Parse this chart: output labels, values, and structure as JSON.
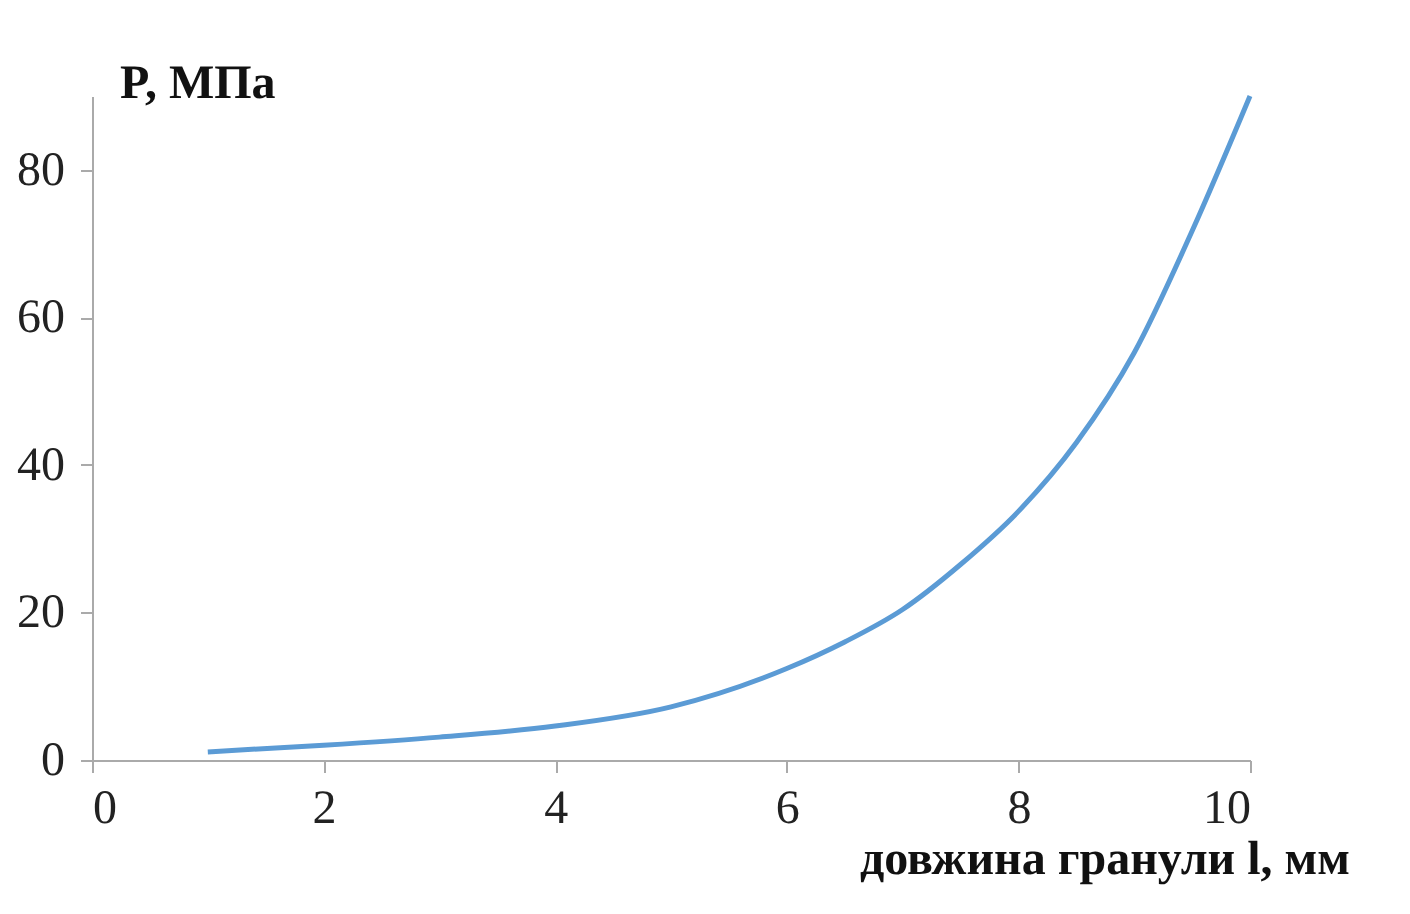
{
  "chart_data": {
    "type": "line",
    "xlabel": "довжина гранули l, мм",
    "ylabel": "P, МПа",
    "x": [
      1,
      2,
      3,
      4,
      5,
      6,
      6.5,
      7,
      7.5,
      8,
      8.5,
      9,
      9.5,
      10
    ],
    "series": [
      {
        "color": "#5b9bd5",
        "values": [
          1.1,
          2.0,
          3.1,
          4.6,
          7.2,
          12.4,
          16,
          20.4,
          26.5,
          33.7,
          43,
          55.2,
          71.7,
          90
        ]
      }
    ],
    "xlim": [
      0,
      10
    ],
    "xticks": [
      0,
      2,
      4,
      6,
      8,
      10
    ],
    "ylim": [
      0,
      90
    ],
    "yticks": [
      0,
      20,
      40,
      60,
      80
    ],
    "grid": false,
    "marker": "none",
    "line_style": "solid"
  }
}
